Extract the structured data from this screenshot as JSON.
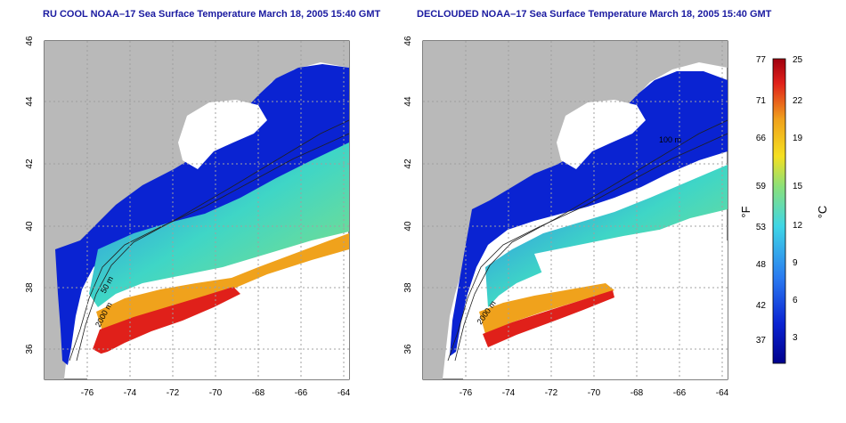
{
  "panels": [
    {
      "title": "RU COOL NOAA–17 Sea Surface Temperature March 18, 2005 15:40 GMT",
      "contour_labels": [
        "50 m",
        "2000 m"
      ]
    },
    {
      "title": "DECLOUDED NOAA–17 Sea Surface Temperature March 18, 2005 15:40 GMT",
      "contour_labels": [
        "2000 m",
        "100 m"
      ]
    }
  ],
  "axes": {
    "lon_ticks": [
      "-76",
      "-74",
      "-72",
      "-70",
      "-68",
      "-66",
      "-64"
    ],
    "lat_ticks": [
      "46",
      "44",
      "42",
      "40",
      "38",
      "36"
    ]
  },
  "colorbar": {
    "fahrenheit_label": "°F",
    "celsius_label": "°C",
    "fahrenheit_ticks": [
      "77",
      "71",
      "66",
      "59",
      "53",
      "48",
      "42",
      "37"
    ],
    "celsius_ticks": [
      "25",
      "22",
      "19",
      "15",
      "12",
      "9",
      "6",
      "3"
    ]
  },
  "colors": {
    "land": "#b9b9b9",
    "cold": "#0a23d2",
    "cool": "#2a7af0",
    "mid": "#3fd6c6",
    "warm": "#f0a21c",
    "hot": "#e0201a",
    "title": "#1a1aa0"
  }
}
